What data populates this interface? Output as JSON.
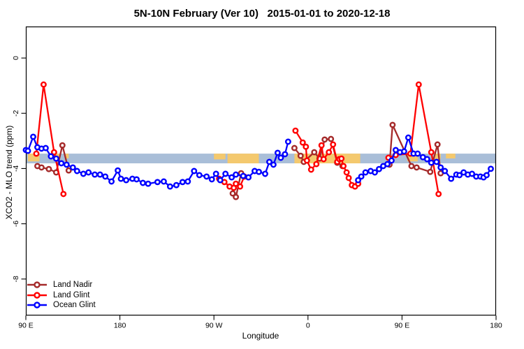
{
  "chart_data": {
    "type": "line",
    "title": "5N-10N February (Ver 10)   2015-01-01 to 2020-12-18",
    "xlabel": "Longitude",
    "ylabel": "XCO2 - MLO trend (ppm)",
    "xlim": [
      90,
      540
    ],
    "ylim": [
      -9.32,
      1.14
    ],
    "grid": false,
    "legend_position": "bottom-left",
    "x_ticks": [
      {
        "value": 90,
        "label": "90 E"
      },
      {
        "value": 180,
        "label": "180"
      },
      {
        "value": 270,
        "label": "90 W"
      },
      {
        "value": 360,
        "label": "0"
      },
      {
        "value": 450,
        "label": "90 E"
      },
      {
        "value": 540,
        "label": "180"
      }
    ],
    "y_ticks": [
      {
        "value": 0,
        "label": "0"
      },
      {
        "value": -2,
        "label": "-2"
      },
      {
        "value": -4,
        "label": "-4"
      },
      {
        "value": -6,
        "label": "-6"
      },
      {
        "value": -8,
        "label": "-8"
      }
    ],
    "map_band": {
      "description": "latitude-band map strip: ocean blue with yellow land patches",
      "ocean_color": "#A9BED8",
      "land_color": "#F4C96E",
      "v_top": -3.46,
      "v_bottom": -3.81,
      "land_patches": [
        {
          "from": 92,
          "to": 103,
          "frac": 0.8
        },
        {
          "from": 118,
          "to": 122,
          "frac": 0.55
        },
        {
          "from": 128,
          "to": 131,
          "frac": 0.5
        },
        {
          "from": 270,
          "to": 281,
          "frac": 0.6
        },
        {
          "from": 283,
          "to": 313,
          "frac": 1
        },
        {
          "from": 347,
          "to": 410,
          "frac": 1
        },
        {
          "from": 455,
          "to": 465,
          "frac": 0.8
        },
        {
          "from": 481,
          "to": 487,
          "frac": 0.55
        },
        {
          "from": 492,
          "to": 501,
          "frac": 0.5
        }
      ]
    },
    "series": [
      {
        "name": "Land Nadir",
        "color": "#A52A2A",
        "segments": [
          [
            [
              101,
              -3.91
            ],
            [
              105,
              -3.96
            ],
            [
              112,
              -4.02
            ],
            [
              119,
              -4.14
            ],
            [
              125,
              -3.16
            ],
            [
              131,
              -4.07
            ]
          ],
          [
            [
              288,
              -4.9
            ],
            [
              291,
              -5.03
            ],
            [
              296,
              -4.17
            ]
          ],
          [
            [
              347,
              -3.26
            ],
            [
              353,
              -3.54
            ],
            [
              356,
              -3.76
            ],
            [
              366,
              -3.41
            ],
            [
              371,
              -3.64
            ],
            [
              376,
              -2.95
            ],
            [
              382,
              -2.93
            ],
            [
              388,
              -3.79
            ],
            [
              393,
              -3.91
            ]
          ],
          [
            [
              438,
              -3.86
            ],
            [
              441,
              -2.42
            ],
            [
              459,
              -3.91
            ],
            [
              464,
              -3.96
            ],
            [
              477,
              -4.12
            ],
            [
              484,
              -3.13
            ],
            [
              487,
              -4.17
            ]
          ]
        ]
      },
      {
        "name": "Land Glint",
        "color": "#FF0000",
        "segments": [
          [
            [
              100,
              -3.46
            ],
            [
              107,
              -0.96
            ],
            [
              117,
              -3.41
            ],
            [
              126,
              -4.92
            ]
          ],
          [
            [
              275,
              -4.37
            ],
            [
              280,
              -4.49
            ],
            [
              285,
              -4.65
            ],
            [
              289,
              -4.7
            ],
            [
              291,
              -4.55
            ],
            [
              295,
              -4.65
            ],
            [
              299,
              -4.29
            ]
          ],
          [
            [
              348,
              -2.63
            ],
            [
              355,
              -3.06
            ],
            [
              358,
              -3.21
            ],
            [
              359,
              -3.71
            ],
            [
              363,
              -4.04
            ],
            [
              368,
              -3.84
            ],
            [
              373,
              -3.16
            ],
            [
              375,
              -3.66
            ],
            [
              380,
              -3.41
            ],
            [
              384,
              -3.13
            ],
            [
              388,
              -3.76
            ],
            [
              390,
              -3.66
            ],
            [
              392,
              -3.64
            ],
            [
              394,
              -3.91
            ],
            [
              397,
              -4.14
            ],
            [
              399,
              -4.34
            ],
            [
              402,
              -4.6
            ],
            [
              405,
              -4.65
            ],
            [
              408,
              -4.55
            ]
          ],
          [
            [
              437,
              -3.61
            ],
            [
              444,
              -3.51
            ],
            [
              458,
              -3.46
            ],
            [
              466,
              -0.96
            ],
            [
              478,
              -3.41
            ],
            [
              485,
              -4.92
            ]
          ]
        ]
      },
      {
        "name": "Ocean Glint",
        "color": "#0000FF",
        "segments": [
          [
            [
              90,
              -3.33
            ],
            [
              92,
              -3.36
            ],
            [
              97,
              -2.85
            ],
            [
              101,
              -3.23
            ],
            [
              105,
              -3.28
            ],
            [
              109,
              -3.26
            ],
            [
              114,
              -3.56
            ],
            [
              119,
              -3.64
            ],
            [
              124,
              -3.81
            ],
            [
              129,
              -3.86
            ],
            [
              135,
              -3.96
            ],
            [
              139,
              -4.09
            ],
            [
              145,
              -4.19
            ],
            [
              150,
              -4.14
            ],
            [
              156,
              -4.22
            ],
            [
              161,
              -4.22
            ],
            [
              166,
              -4.29
            ],
            [
              172,
              -4.47
            ],
            [
              178,
              -4.07
            ],
            [
              181,
              -4.37
            ],
            [
              186,
              -4.42
            ],
            [
              192,
              -4.37
            ],
            [
              196,
              -4.39
            ],
            [
              202,
              -4.52
            ],
            [
              207,
              -4.55
            ],
            [
              216,
              -4.49
            ],
            [
              222,
              -4.47
            ],
            [
              228,
              -4.65
            ],
            [
              234,
              -4.6
            ],
            [
              240,
              -4.49
            ],
            [
              245,
              -4.47
            ],
            [
              251,
              -4.09
            ],
            [
              256,
              -4.24
            ],
            [
              263,
              -4.29
            ],
            [
              268,
              -4.39
            ],
            [
              272,
              -4.19
            ],
            [
              276,
              -4.42
            ],
            [
              281,
              -4.19
            ],
            [
              287,
              -4.32
            ],
            [
              291,
              -4.22
            ],
            [
              298,
              -4.27
            ],
            [
              303,
              -4.32
            ],
            [
              309,
              -4.09
            ],
            [
              313,
              -4.12
            ],
            [
              319,
              -4.19
            ],
            [
              323,
              -3.76
            ],
            [
              327,
              -3.86
            ],
            [
              331,
              -3.43
            ],
            [
              334,
              -3.61
            ],
            [
              338,
              -3.48
            ],
            [
              341,
              -3.03
            ]
          ],
          [
            [
              408,
              -4.42
            ],
            [
              411,
              -4.29
            ],
            [
              415,
              -4.14
            ],
            [
              420,
              -4.09
            ],
            [
              424,
              -4.14
            ],
            [
              428,
              -4.02
            ],
            [
              432,
              -3.91
            ],
            [
              436,
              -3.84
            ],
            [
              440,
              -3.71
            ],
            [
              444,
              -3.33
            ],
            [
              448,
              -3.41
            ],
            [
              452,
              -3.38
            ],
            [
              456,
              -2.88
            ],
            [
              461,
              -3.46
            ],
            [
              465,
              -3.46
            ],
            [
              470,
              -3.59
            ],
            [
              474,
              -3.66
            ],
            [
              478,
              -3.79
            ],
            [
              483,
              -3.76
            ],
            [
              487,
              -3.96
            ],
            [
              491,
              -4.09
            ],
            [
              497,
              -4.37
            ],
            [
              502,
              -4.22
            ],
            [
              505,
              -4.24
            ],
            [
              509,
              -4.14
            ],
            [
              513,
              -4.22
            ],
            [
              517,
              -4.19
            ],
            [
              521,
              -4.29
            ],
            [
              525,
              -4.29
            ],
            [
              528,
              -4.32
            ],
            [
              531,
              -4.24
            ],
            [
              535,
              -4.01
            ]
          ]
        ]
      }
    ]
  }
}
